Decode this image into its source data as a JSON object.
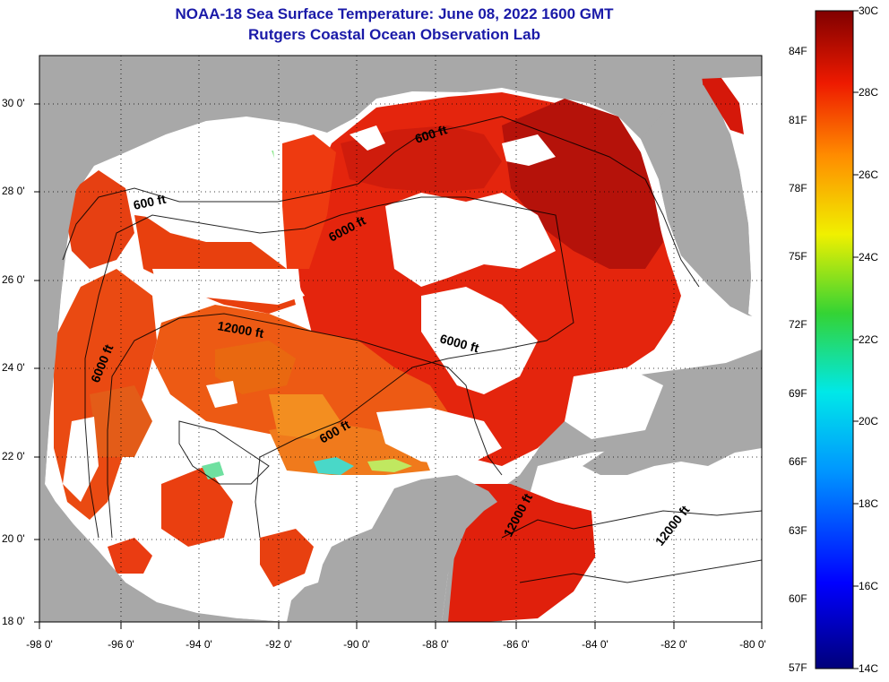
{
  "title": {
    "line1": "NOAA-18 Sea Surface Temperature:  June 08, 2022 1600 GMT",
    "line2": "Rutgers Coastal Ocean Observation Lab"
  },
  "map": {
    "lat_labels": [
      "30 0'",
      "28 0'",
      "26 0'",
      "24 0'",
      "22 0'",
      "20 0'",
      "18 0'"
    ],
    "lon_labels": [
      "-98 0'",
      "-96 0'",
      "-94 0'",
      "-92 0'",
      "-90 0'",
      "-88 0'",
      "-86 0'",
      "-84 0'",
      "-82 0'",
      "-80 0'"
    ],
    "contour_labels": [
      "600 ft",
      "600 ft",
      "600 ft",
      "6000 ft",
      "6000 ft",
      "6000 ft",
      "12000 ft",
      "12000 ft",
      "12000 ft"
    ],
    "colors": {
      "land": "#a8a8a8",
      "no_data": "#ffffff"
    }
  },
  "colorbar": {
    "celsius_labels": [
      "30C",
      "28C",
      "26C",
      "24C",
      "22C",
      "20C",
      "18C",
      "16C",
      "14C"
    ],
    "fahrenheit_labels": [
      "84F",
      "81F",
      "78F",
      "75F",
      "72F",
      "69F",
      "66F",
      "63F",
      "60F",
      "57F"
    ]
  }
}
